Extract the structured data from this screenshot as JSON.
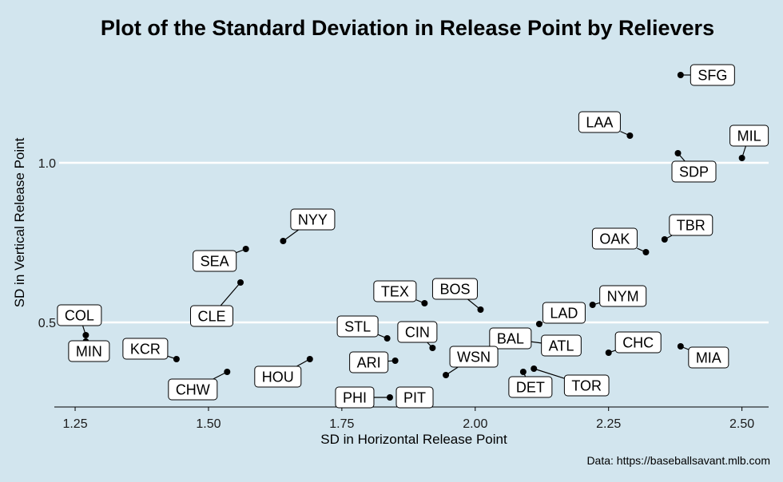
{
  "chart_data": {
    "type": "scatter",
    "title": "Plot of the Standard Deviation in Release Point by Relievers",
    "xlabel": "SD in Horizontal Release Point",
    "ylabel": "SD in Vertical Release Point",
    "caption": "Data: https://baseballsavant.mlb.com",
    "xlim": [
      1.22,
      2.55
    ],
    "ylim": [
      0.235,
      1.37
    ],
    "xticks": [
      1.25,
      1.5,
      1.75,
      2.0,
      2.25,
      2.5
    ],
    "xtick_labels": [
      "1.25",
      "1.50",
      "1.75",
      "2.00",
      "2.25",
      "2.50"
    ],
    "yticks": [
      0.5,
      1.0
    ],
    "ytick_labels": [
      "0.5",
      "1.0"
    ],
    "grid": "horizontal-major",
    "points": [
      {
        "team": "SFG",
        "x": 2.385,
        "y": 1.275
      },
      {
        "team": "LAA",
        "x": 2.29,
        "y": 1.085
      },
      {
        "team": "SDP",
        "x": 2.38,
        "y": 1.03
      },
      {
        "team": "MIL",
        "x": 2.5,
        "y": 1.015
      },
      {
        "team": "TBR",
        "x": 2.355,
        "y": 0.76
      },
      {
        "team": "OAK",
        "x": 2.32,
        "y": 0.72
      },
      {
        "team": "NYY",
        "x": 1.64,
        "y": 0.755
      },
      {
        "team": "SEA",
        "x": 1.57,
        "y": 0.73
      },
      {
        "team": "CLE",
        "x": 1.56,
        "y": 0.625
      },
      {
        "team": "NYM",
        "x": 2.22,
        "y": 0.555
      },
      {
        "team": "TEX",
        "x": 1.905,
        "y": 0.56
      },
      {
        "team": "BOS",
        "x": 2.01,
        "y": 0.54
      },
      {
        "team": "LAD",
        "x": 2.12,
        "y": 0.495
      },
      {
        "team": "BAL",
        "x": 2.06,
        "y": 0.45
      },
      {
        "team": "ATL",
        "x": 2.055,
        "y": 0.45
      },
      {
        "team": "STL",
        "x": 1.835,
        "y": 0.45
      },
      {
        "team": "CIN",
        "x": 1.92,
        "y": 0.42
      },
      {
        "team": "CHC",
        "x": 2.25,
        "y": 0.405
      },
      {
        "team": "MIA",
        "x": 2.385,
        "y": 0.425
      },
      {
        "team": "COL",
        "x": 1.27,
        "y": 0.46
      },
      {
        "team": "MIN",
        "x": 1.27,
        "y": 0.44
      },
      {
        "team": "KCR",
        "x": 1.44,
        "y": 0.385
      },
      {
        "team": "HOU",
        "x": 1.69,
        "y": 0.385
      },
      {
        "team": "ARI",
        "x": 1.85,
        "y": 0.38
      },
      {
        "team": "WSN",
        "x": 1.945,
        "y": 0.335
      },
      {
        "team": "DET",
        "x": 2.09,
        "y": 0.345
      },
      {
        "team": "TOR",
        "x": 2.11,
        "y": 0.355
      },
      {
        "team": "CHW",
        "x": 1.535,
        "y": 0.345
      },
      {
        "team": "PHI",
        "x": 1.84,
        "y": 0.265
      },
      {
        "team": "PIT",
        "x": 1.9,
        "y": 0.265
      }
    ]
  }
}
